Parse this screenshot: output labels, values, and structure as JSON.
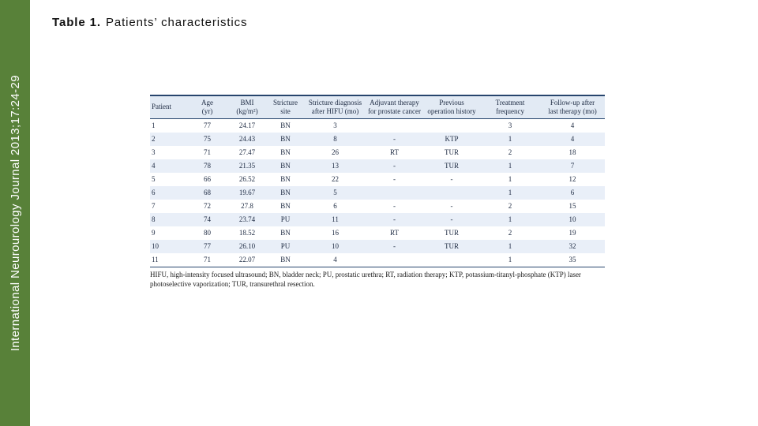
{
  "sidebar": {
    "journal_citation": "International Neurourology Journal 2013;17:24-29",
    "bar_color": "#588139",
    "text_color": "#ffffff"
  },
  "title": {
    "label": "Table 1.",
    "text": "Patients’ characteristics"
  },
  "table": {
    "columns": [
      "Patient",
      "Age\n(yr)",
      "BMI\n(kg/m²)",
      "Stricture\nsite",
      "Stricture diagnosis\nafter HIFU (mo)",
      "Adjuvant therapy\nfor prostate cancer",
      "Previous\noperation history",
      "Treatment\nfrequency",
      "Follow-up after\nlast therapy (mo)"
    ],
    "rows": [
      [
        "1",
        "77",
        "24.17",
        "BN",
        "3",
        "",
        "",
        "3",
        "4"
      ],
      [
        "2",
        "75",
        "24.43",
        "BN",
        "8",
        "-",
        "KTP",
        "1",
        "4"
      ],
      [
        "3",
        "71",
        "27.47",
        "BN",
        "26",
        "RT",
        "TUR",
        "2",
        "18"
      ],
      [
        "4",
        "78",
        "21.35",
        "BN",
        "13",
        "-",
        "TUR",
        "1",
        "7"
      ],
      [
        "5",
        "66",
        "26.52",
        "BN",
        "22",
        "-",
        "-",
        "1",
        "12"
      ],
      [
        "6",
        "68",
        "19.67",
        "BN",
        "5",
        "",
        "",
        "1",
        "6"
      ],
      [
        "7",
        "72",
        "27.8",
        "BN",
        "6",
        "-",
        "-",
        "2",
        "15"
      ],
      [
        "8",
        "74",
        "23.74",
        "PU",
        "11",
        "-",
        "-",
        "1",
        "10"
      ],
      [
        "9",
        "80",
        "18.52",
        "BN",
        "16",
        "RT",
        "TUR",
        "2",
        "19"
      ],
      [
        "10",
        "77",
        "26.10",
        "PU",
        "10",
        "-",
        "TUR",
        "1",
        "32"
      ],
      [
        "11",
        "71",
        "22.07",
        "BN",
        "4",
        "",
        "",
        "1",
        "35"
      ]
    ],
    "footnote": "HIFU, high-intensity focused ultrasound; BN, bladder neck; PU, prostatic urethra; RT, radiation therapy; KTP, potassium-titanyl-phosphate (KTP) laser photoselective vaporization; TUR, transurethral resection.",
    "colors": {
      "header_bg": "#e2eaf4",
      "stripe_bg": "#e9eff8",
      "rule": "#27456d"
    }
  }
}
